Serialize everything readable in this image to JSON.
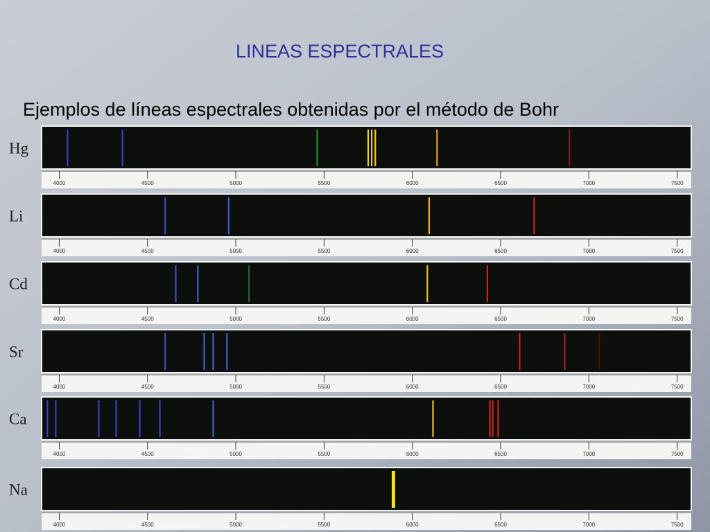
{
  "title": "LINEAS ESPECTRALES",
  "subtitle": "Ejemplos de líneas espectrales obtenidas por el método de Bohr",
  "spectra": {
    "xlim": [
      3900,
      7580
    ],
    "xticks": [
      4000,
      4500,
      5000,
      5500,
      6000,
      6500,
      7000,
      7500
    ],
    "rows": [
      {
        "element": "Hg",
        "lines": [
          {
            "wavelength": 4047,
            "color": "#3c3cc8"
          },
          {
            "wavelength": 4358,
            "color": "#3c3cc8"
          },
          {
            "wavelength": 5461,
            "color": "#2a8a2a"
          },
          {
            "wavelength": 5750,
            "color": "#f0d020"
          },
          {
            "wavelength": 5770,
            "color": "#f0d020"
          },
          {
            "wavelength": 5790,
            "color": "#f0d020"
          },
          {
            "wavelength": 6140,
            "color": "#f0a020"
          },
          {
            "wavelength": 6890,
            "color": "#8a1818"
          }
        ]
      },
      {
        "element": "Li",
        "lines": [
          {
            "wavelength": 4600,
            "color": "#3c50c8"
          },
          {
            "wavelength": 4960,
            "color": "#3c60d0"
          },
          {
            "wavelength": 6095,
            "color": "#f0b020"
          },
          {
            "wavelength": 6690,
            "color": "#d02020"
          }
        ]
      },
      {
        "element": "Cd",
        "lines": [
          {
            "wavelength": 4660,
            "color": "#3c50c8"
          },
          {
            "wavelength": 4785,
            "color": "#3c60d0"
          },
          {
            "wavelength": 5075,
            "color": "#1e6a2a"
          },
          {
            "wavelength": 6085,
            "color": "#f0c020"
          },
          {
            "wavelength": 6425,
            "color": "#d02020"
          }
        ]
      },
      {
        "element": "Sr",
        "lines": [
          {
            "wavelength": 4600,
            "color": "#3c50c8"
          },
          {
            "wavelength": 4821,
            "color": "#3c60d0"
          },
          {
            "wavelength": 4872,
            "color": "#3c60d0"
          },
          {
            "wavelength": 4950,
            "color": "#3c60d0"
          },
          {
            "wavelength": 6608,
            "color": "#d02020"
          },
          {
            "wavelength": 6863,
            "color": "#b01c1c"
          },
          {
            "wavelength": 7060,
            "color": "#4a1010"
          }
        ]
      },
      {
        "element": "Ca",
        "lines": [
          {
            "wavelength": 3933,
            "color": "#3c3cc8"
          },
          {
            "wavelength": 3980,
            "color": "#3c3cc8"
          },
          {
            "wavelength": 4224,
            "color": "#3c3cc8"
          },
          {
            "wavelength": 4322,
            "color": "#3c3cc8"
          },
          {
            "wavelength": 4456,
            "color": "#3c40c8"
          },
          {
            "wavelength": 4570,
            "color": "#3c40c8"
          },
          {
            "wavelength": 4872,
            "color": "#3c60d0"
          },
          {
            "wavelength": 6117,
            "color": "#f0c020"
          },
          {
            "wavelength": 6439,
            "color": "#d02020"
          },
          {
            "wavelength": 6455,
            "color": "#d02020"
          },
          {
            "wavelength": 6486,
            "color": "#d02020"
          }
        ]
      },
      {
        "element": "Na",
        "lines": [
          {
            "wavelength": 5893,
            "color": "#f0e020"
          }
        ]
      }
    ]
  }
}
